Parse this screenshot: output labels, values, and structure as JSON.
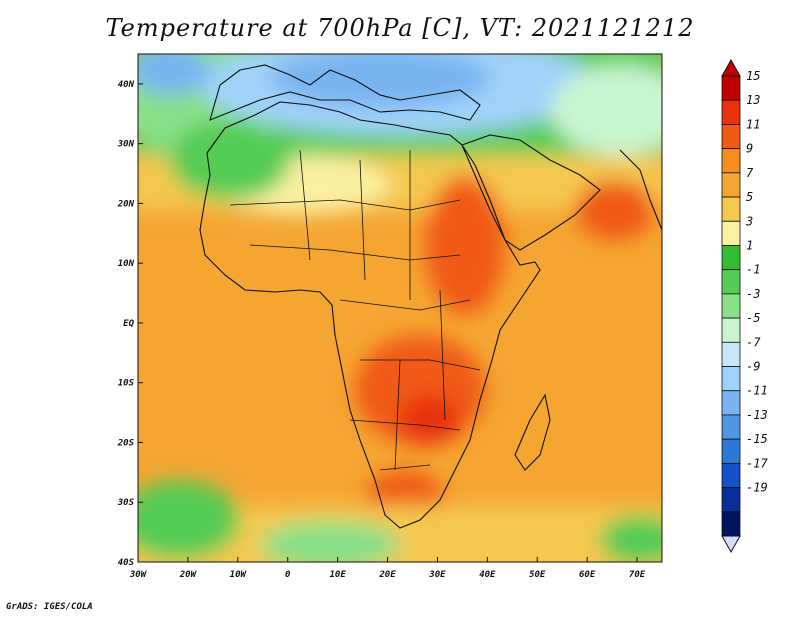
{
  "title": "Temperature at 700hPa [C], VT: 2021121212",
  "credit": "GrADS: IGES/COLA",
  "map": {
    "projection": "latlon",
    "lon_range": [
      -30,
      75
    ],
    "lat_range": [
      -40,
      45
    ],
    "lon_ticks": [
      "30W",
      "20W",
      "10W",
      "0",
      "10E",
      "20E",
      "30E",
      "40E",
      "50E",
      "60E",
      "70E"
    ],
    "lat_ticks": [
      "40N",
      "30N",
      "20N",
      "10N",
      "EQ",
      "10S",
      "20S",
      "30S",
      "40S"
    ]
  },
  "colorbar": {
    "labels": [
      "15",
      "13",
      "11",
      "9",
      "7",
      "5",
      "3",
      "1",
      "-1",
      "-3",
      "-5",
      "-7",
      "-9",
      "-11",
      "-13",
      "-15",
      "-17",
      "-19"
    ],
    "colors": [
      "#c00000",
      "#e8320a",
      "#f05a14",
      "#f58c1e",
      "#f5a532",
      "#f5c850",
      "#faf0a0",
      "#33bb33",
      "#55cc55",
      "#88e088",
      "#c8f5d0",
      "#c8e6fa",
      "#a0d2fa",
      "#78b4f0",
      "#5096e6",
      "#2d78d7",
      "#1450c8",
      "#0a2d9b",
      "#001460"
    ],
    "over_color": "#c00000",
    "under_color": "#d8d8f8"
  },
  "chart_data": {
    "type": "heatmap",
    "title": "Temperature at 700hPa [C], VT: 2021121212",
    "field": "Temperature at 700hPa",
    "unit": "C",
    "valid_time": "2021121212",
    "lon_range": [
      -30,
      75
    ],
    "lat_range": [
      -40,
      45
    ],
    "contour_levels": [
      -19,
      -17,
      -15,
      -13,
      -11,
      -9,
      -7,
      -5,
      -3,
      -1,
      1,
      3,
      5,
      7,
      9,
      11,
      13,
      15
    ],
    "approx_regions": [
      {
        "region": "Mediterranean / southern Europe",
        "value": -5
      },
      {
        "region": "North Atlantic NW corner",
        "value": -5
      },
      {
        "region": "Sahara / northwest Africa",
        "value": 2
      },
      {
        "region": "Tropical Atlantic",
        "value": 8
      },
      {
        "region": "Sudan / Ethiopia highlands",
        "value": 12
      },
      {
        "region": "Angola / Zambia / Botswana",
        "value": 12
      },
      {
        "region": "Arabian Sea",
        "value": 10
      },
      {
        "region": "Southern Ocean south of 32S",
        "value": 2
      }
    ]
  }
}
